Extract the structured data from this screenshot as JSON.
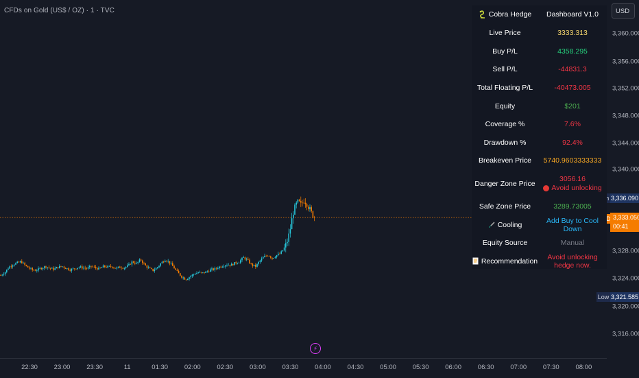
{
  "chart_title": "CFDs on Gold (US$ / OZ) · 1 · TVC",
  "currency_button": "USD",
  "price_axis_ticks": [
    "3,360.000",
    "3,356.000",
    "3,352.000",
    "3,348.000",
    "3,344.000",
    "3,340.000",
    "3,336.090",
    "3,333.050",
    "3,328.000",
    "3,324.000",
    "3,321.585",
    "3,320.000",
    "3,316.000"
  ],
  "tags": {
    "high_label": "High",
    "high_value": "3,336.090",
    "gold_label": "GOLD",
    "gold_price": "3,333.050",
    "gold_countdown": "00:41",
    "low_label": "Low",
    "low_value": "3,321.585"
  },
  "time_axis_ticks": [
    "22:30",
    "23:00",
    "23:30",
    "11",
    "01:30",
    "02:00",
    "02:30",
    "03:00",
    "03:30",
    "04:00",
    "04:30",
    "05:00",
    "05:30",
    "06:00",
    "06:30",
    "07:00",
    "07:30",
    "08:00"
  ],
  "dashboard": {
    "header_left": "Cobra Hedge",
    "header_right": "Dashboard V1.0",
    "rows": [
      {
        "label": "Live Price",
        "value": "3333.313",
        "color": "#f5d76e"
      },
      {
        "label": "Buy P/L",
        "value": "4358.295",
        "color": "#26d07c"
      },
      {
        "label": "Sell P/L",
        "value": "-44831.3",
        "color": "#f23645"
      },
      {
        "label": "Total Floating P/L",
        "value": "-40473.005",
        "color": "#f23645"
      },
      {
        "label": "Equity",
        "value": "$201",
        "color": "#4caf50"
      },
      {
        "label": "Coverage %",
        "value": "7.6%",
        "color": "#f23645"
      },
      {
        "label": "Drawdown %",
        "value": "92.4%",
        "color": "#f23645"
      },
      {
        "label": "Breakeven Price",
        "value": "5740.9603333333",
        "color": "#f5a623"
      },
      {
        "label": "Danger Zone Price",
        "value": "3056.16",
        "note": "Avoid unlocking",
        "color": "#f23645"
      },
      {
        "label": "Safe Zone Price",
        "value": "3289.73005",
        "color": "#4caf50"
      },
      {
        "label": "Cooling",
        "value": "Add Buy to Cool Down",
        "color": "#29b6f6",
        "icon": "brush-icon"
      },
      {
        "label": "Equity Source",
        "value": "Manual",
        "color": "#787b86"
      },
      {
        "label": "Recommendation",
        "value": "Avoid unlocking hedge now.",
        "color": "#f23645",
        "icon": "memo-icon"
      }
    ]
  },
  "colors": {
    "up_candle": "#26c6da",
    "down_candle": "#f57c00",
    "background": "#161a25",
    "current_price_line": "#f57c00"
  },
  "chart_data": {
    "type": "candlestick",
    "title": "CFDs on Gold (US$ / OZ) · 1 · TVC",
    "symbol": "GOLD",
    "x_range": [
      "22:00",
      "04:00"
    ],
    "ylim": [
      3313,
      3362
    ],
    "high": 3336.09,
    "low": 3321.585,
    "last": 3333.05,
    "close_path": [
      [
        0,
        3324.6
      ],
      [
        6,
        3325.0
      ],
      [
        12,
        3325.8
      ],
      [
        18,
        3326.2
      ],
      [
        24,
        3326.4
      ],
      [
        30,
        3326.6
      ],
      [
        36,
        3326.0
      ],
      [
        42,
        3325.6
      ],
      [
        48,
        3325.3
      ],
      [
        54,
        3325.4
      ],
      [
        60,
        3325.7
      ],
      [
        66,
        3325.9
      ],
      [
        72,
        3325.6
      ],
      [
        78,
        3325.5
      ],
      [
        84,
        3325.8
      ],
      [
        90,
        3325.9
      ],
      [
        96,
        3325.6
      ],
      [
        102,
        3325.4
      ],
      [
        108,
        3325.6
      ],
      [
        114,
        3325.8
      ],
      [
        120,
        3325.7
      ],
      [
        126,
        3325.6
      ],
      [
        132,
        3325.9
      ],
      [
        138,
        3325.7
      ],
      [
        144,
        3325.5
      ],
      [
        150,
        3325.9
      ],
      [
        156,
        3325.8
      ],
      [
        162,
        3325.9
      ],
      [
        168,
        3325.6
      ],
      [
        174,
        3325.8
      ],
      [
        180,
        3325.7
      ],
      [
        186,
        3326.0
      ],
      [
        192,
        3326.6
      ],
      [
        198,
        3326.3
      ],
      [
        204,
        3326.9
      ],
      [
        210,
        3326.1
      ],
      [
        216,
        3325.6
      ],
      [
        222,
        3325.3
      ],
      [
        228,
        3325.7
      ],
      [
        234,
        3326.4
      ],
      [
        240,
        3326.9
      ],
      [
        246,
        3326.5
      ],
      [
        252,
        3325.8
      ],
      [
        258,
        3325.0
      ],
      [
        264,
        3324.4
      ],
      [
        270,
        3324.0
      ],
      [
        276,
        3324.4
      ],
      [
        282,
        3324.8
      ],
      [
        288,
        3325.0
      ],
      [
        294,
        3324.9
      ],
      [
        300,
        3325.1
      ],
      [
        306,
        3325.4
      ],
      [
        312,
        3325.5
      ],
      [
        318,
        3325.8
      ],
      [
        324,
        3326.0
      ],
      [
        330,
        3326.2
      ],
      [
        336,
        3326.1
      ],
      [
        342,
        3326.4
      ],
      [
        348,
        3326.6
      ],
      [
        354,
        3327.2
      ],
      [
        360,
        3326.8
      ],
      [
        366,
        3326.1
      ],
      [
        372,
        3325.9
      ],
      [
        378,
        3326.7
      ],
      [
        384,
        3327.3
      ],
      [
        390,
        3327.6
      ],
      [
        396,
        3327.1
      ],
      [
        402,
        3327.5
      ],
      [
        408,
        3327.8
      ],
      [
        414,
        3328.6
      ],
      [
        418,
        3329.6
      ],
      [
        422,
        3331.2
      ],
      [
        426,
        3333.6
      ],
      [
        430,
        3334.8
      ],
      [
        434,
        3335.4
      ],
      [
        438,
        3334.9
      ],
      [
        442,
        3335.6
      ],
      [
        446,
        3335.2
      ],
      [
        450,
        3334.4
      ],
      [
        454,
        3333.6
      ],
      [
        458,
        3333.05
      ]
    ]
  }
}
